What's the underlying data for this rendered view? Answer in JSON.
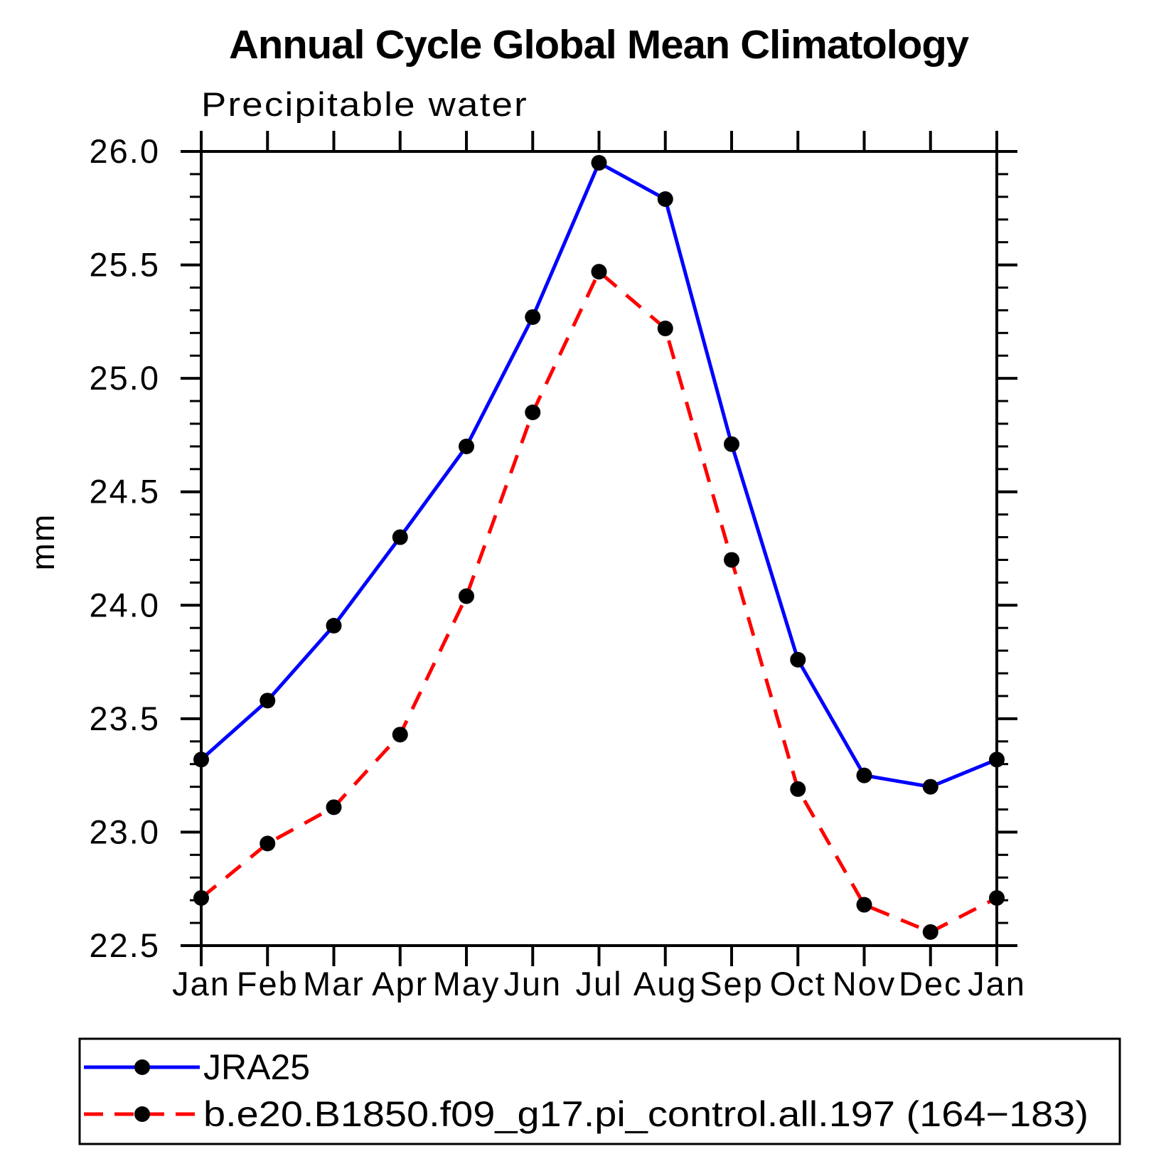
{
  "chart_data": {
    "type": "line",
    "title": "Annual Cycle Global Mean Climatology",
    "subtitle": "Precipitable water",
    "xlabel": "",
    "ylabel": "mm",
    "categories": [
      "Jan",
      "Feb",
      "Mar",
      "Apr",
      "May",
      "Jun",
      "Jul",
      "Aug",
      "Sep",
      "Oct",
      "Nov",
      "Dec",
      "Jan"
    ],
    "ylim": [
      22.5,
      26.0
    ],
    "ytick_labels": [
      "22.5",
      "23.0",
      "23.5",
      "24.0",
      "24.5",
      "25.0",
      "25.5",
      "26.0"
    ],
    "ytick_step": 0.5,
    "yminor_step": 0.1,
    "grid": false,
    "frame": "box-with-outward-ticks",
    "legend_position": "bottom-left-box",
    "series": [
      {
        "name": "JRA25",
        "color": "#0000ff",
        "line_style": "solid",
        "marker": "filled-circle",
        "marker_color": "#000000",
        "values": [
          23.32,
          23.58,
          23.91,
          24.3,
          24.7,
          25.27,
          25.95,
          25.79,
          24.71,
          23.76,
          23.25,
          23.2,
          23.32
        ]
      },
      {
        "name": "b.e20.B1850.f09_g17.pi_control.all.197 (164−183)",
        "color": "#ff0000",
        "line_style": "dashed",
        "marker": "filled-circle",
        "marker_color": "#000000",
        "values": [
          22.71,
          22.95,
          23.11,
          23.43,
          24.04,
          24.85,
          25.47,
          25.22,
          24.2,
          23.19,
          22.68,
          22.56,
          22.71
        ]
      }
    ]
  }
}
